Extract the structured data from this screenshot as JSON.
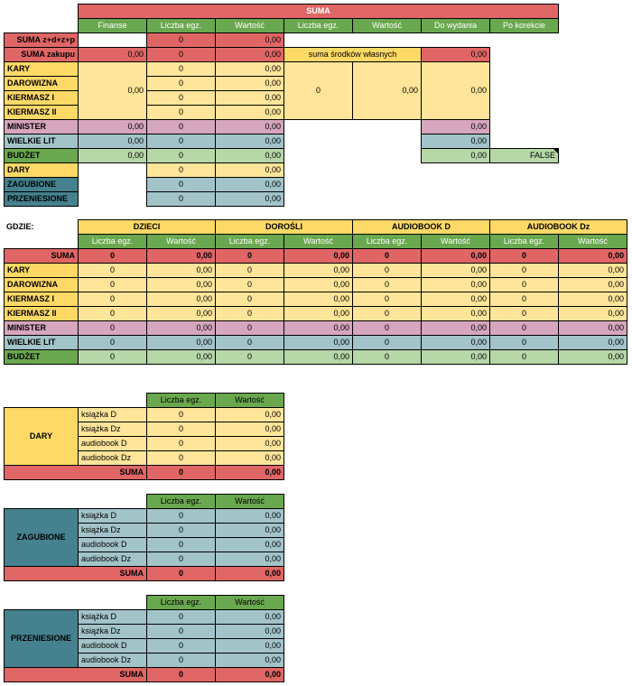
{
  "colors": {
    "red": "#E06666",
    "yellow": "#FFE599",
    "gold": "#FFD966",
    "green": "#6AA84F",
    "light_green": "#B6D7A8",
    "pink": "#D5A6BD",
    "teal": "#A2C4C9",
    "dark_teal": "#45818E",
    "white": "#FFFFFF"
  },
  "summary": {
    "title": "SUMA",
    "col_finanse": "Finanse",
    "col_liczba": "Liczba egz.",
    "col_wartosc": "Wartość",
    "col_liczba2": "Liczba egz.",
    "col_wartosc2": "Wartość",
    "col_do_wydania": "Do wydania",
    "col_po_korekcie": "Po korekcie",
    "row_z": {
      "label": "SUMA z+d+z+p",
      "liczba": "0",
      "wartosc": "0,00"
    },
    "row_zakupu": {
      "label": "SUMA zakupu",
      "finanse": "0,00",
      "liczba": "0",
      "wartosc": "0,00"
    },
    "srodki_label": "suma środków własnych",
    "srodki_total": "0,00",
    "group_finanse": "0,00",
    "group_liczba2": "0",
    "group_wartosc2": "0,00",
    "group_do_wydania": "0,00",
    "group_rows": [
      {
        "label": "KARY",
        "liczba": "0",
        "wartosc": "0,00"
      },
      {
        "label": "DAROWIZNA",
        "liczba": "0",
        "wartosc": "0,00"
      },
      {
        "label": "KIERMASZ I",
        "liczba": "0",
        "wartosc": "0,00"
      },
      {
        "label": "KIERMASZ II",
        "liczba": "0",
        "wartosc": "0,00"
      }
    ],
    "minister": {
      "label": "MINISTER",
      "finanse": "0,00",
      "liczba": "0",
      "wartosc": "0,00",
      "do_wydania": "0,00"
    },
    "wielkie": {
      "label": "WIELKIE LIT",
      "finanse": "0,00",
      "liczba": "0",
      "wartosc": "0,00",
      "do_wydania": "0,00"
    },
    "budzet": {
      "label": "BUDŻET",
      "finanse": "0,00",
      "liczba": "0",
      "wartosc": "0,00",
      "do_wydania": "0,00",
      "po_korekcie": "FALSE"
    },
    "dary": {
      "label": "DARY",
      "liczba": "0",
      "wartosc": "0,00"
    },
    "zagubione": {
      "label": "ZAGUBIONE",
      "liczba": "0",
      "wartosc": "0,00"
    },
    "przeniesione": {
      "label": "PRZENIESIONE",
      "liczba": "0",
      "wartosc": "0,00"
    }
  },
  "breakdown": {
    "gdzie_label": "GDZIE:",
    "groups": [
      "DZIECI",
      "DOROŚLI",
      "AUDIOBOOK D",
      "AUDIOBOOK Dz"
    ],
    "subheaders": [
      "Liczba egz.",
      "Wartość",
      "Liczba egz.",
      "Wartość",
      "Liczba egz.",
      "Wartość",
      "Liczba egz.",
      "Wartość"
    ],
    "rows": [
      {
        "label": "SUMA",
        "values": [
          "0",
          "0,00",
          "0",
          "0,00",
          "0",
          "0,00",
          "0",
          "0,00"
        ]
      },
      {
        "label": "KARY",
        "values": [
          "0",
          "0,00",
          "0",
          "0,00",
          "0",
          "0,00",
          "0",
          "0,00"
        ]
      },
      {
        "label": "DAROWIZNA",
        "values": [
          "0",
          "0,00",
          "0",
          "0,00",
          "0",
          "0,00",
          "0",
          "0,00"
        ]
      },
      {
        "label": "KIERMASZ I",
        "values": [
          "0",
          "0,00",
          "0",
          "0,00",
          "0",
          "0,00",
          "0",
          "0,00"
        ]
      },
      {
        "label": "KIERMASZ II",
        "values": [
          "0",
          "0,00",
          "0",
          "0,00",
          "0",
          "0,00",
          "0",
          "0,00"
        ]
      },
      {
        "label": "MINISTER",
        "values": [
          "0",
          "0,00",
          "0",
          "0,00",
          "0",
          "0,00",
          "0",
          "0,00"
        ]
      },
      {
        "label": "WIELKIE LIT",
        "values": [
          "0",
          "0,00",
          "0",
          "0,00",
          "0",
          "0,00",
          "0",
          "0,00"
        ]
      },
      {
        "label": "BUDŻET",
        "values": [
          "0",
          "0,00",
          "0",
          "0,00",
          "0",
          "0,00",
          "0",
          "0,00"
        ]
      }
    ]
  },
  "subtables": [
    {
      "label": "DARY",
      "col_liczba": "Liczba egz.",
      "col_wartosc": "Wartość",
      "rows": [
        {
          "item": "książka D",
          "liczba": "0",
          "wartosc": "0,00"
        },
        {
          "item": "książka Dz",
          "liczba": "0",
          "wartosc": "0,00"
        },
        {
          "item": "audiobook D",
          "liczba": "0",
          "wartosc": "0,00"
        },
        {
          "item": "audiobook Dz",
          "liczba": "0",
          "wartosc": "0,00"
        }
      ],
      "sum_label": "SUMA",
      "sum_liczba": "0",
      "sum_wartosc": "0,00"
    },
    {
      "label": "ZAGUBIONE",
      "col_liczba": "Liczba egz.",
      "col_wartosc": "Wartość",
      "rows": [
        {
          "item": "książka D",
          "liczba": "0",
          "wartosc": "0,00"
        },
        {
          "item": "książka Dz",
          "liczba": "0",
          "wartosc": "0,00"
        },
        {
          "item": "audiobook D",
          "liczba": "0",
          "wartosc": "0,00"
        },
        {
          "item": "audiobook Dz",
          "liczba": "0",
          "wartosc": "0,00"
        }
      ],
      "sum_label": "SUMA",
      "sum_liczba": "0",
      "sum_wartosc": "0,00"
    },
    {
      "label": "PRZENIESIONE",
      "col_liczba": "Liczba egz.",
      "col_wartosc": "Wartość",
      "rows": [
        {
          "item": "książka D",
          "liczba": "0",
          "wartosc": "0,00"
        },
        {
          "item": "książka Dz",
          "liczba": "0",
          "wartosc": "0,00"
        },
        {
          "item": "audiobook D",
          "liczba": "0",
          "wartosc": "0,00"
        },
        {
          "item": "audiobook Dz",
          "liczba": "0",
          "wartosc": "0,00"
        }
      ],
      "sum_label": "SUMA",
      "sum_liczba": "0",
      "sum_wartosc": "0,00"
    }
  ]
}
